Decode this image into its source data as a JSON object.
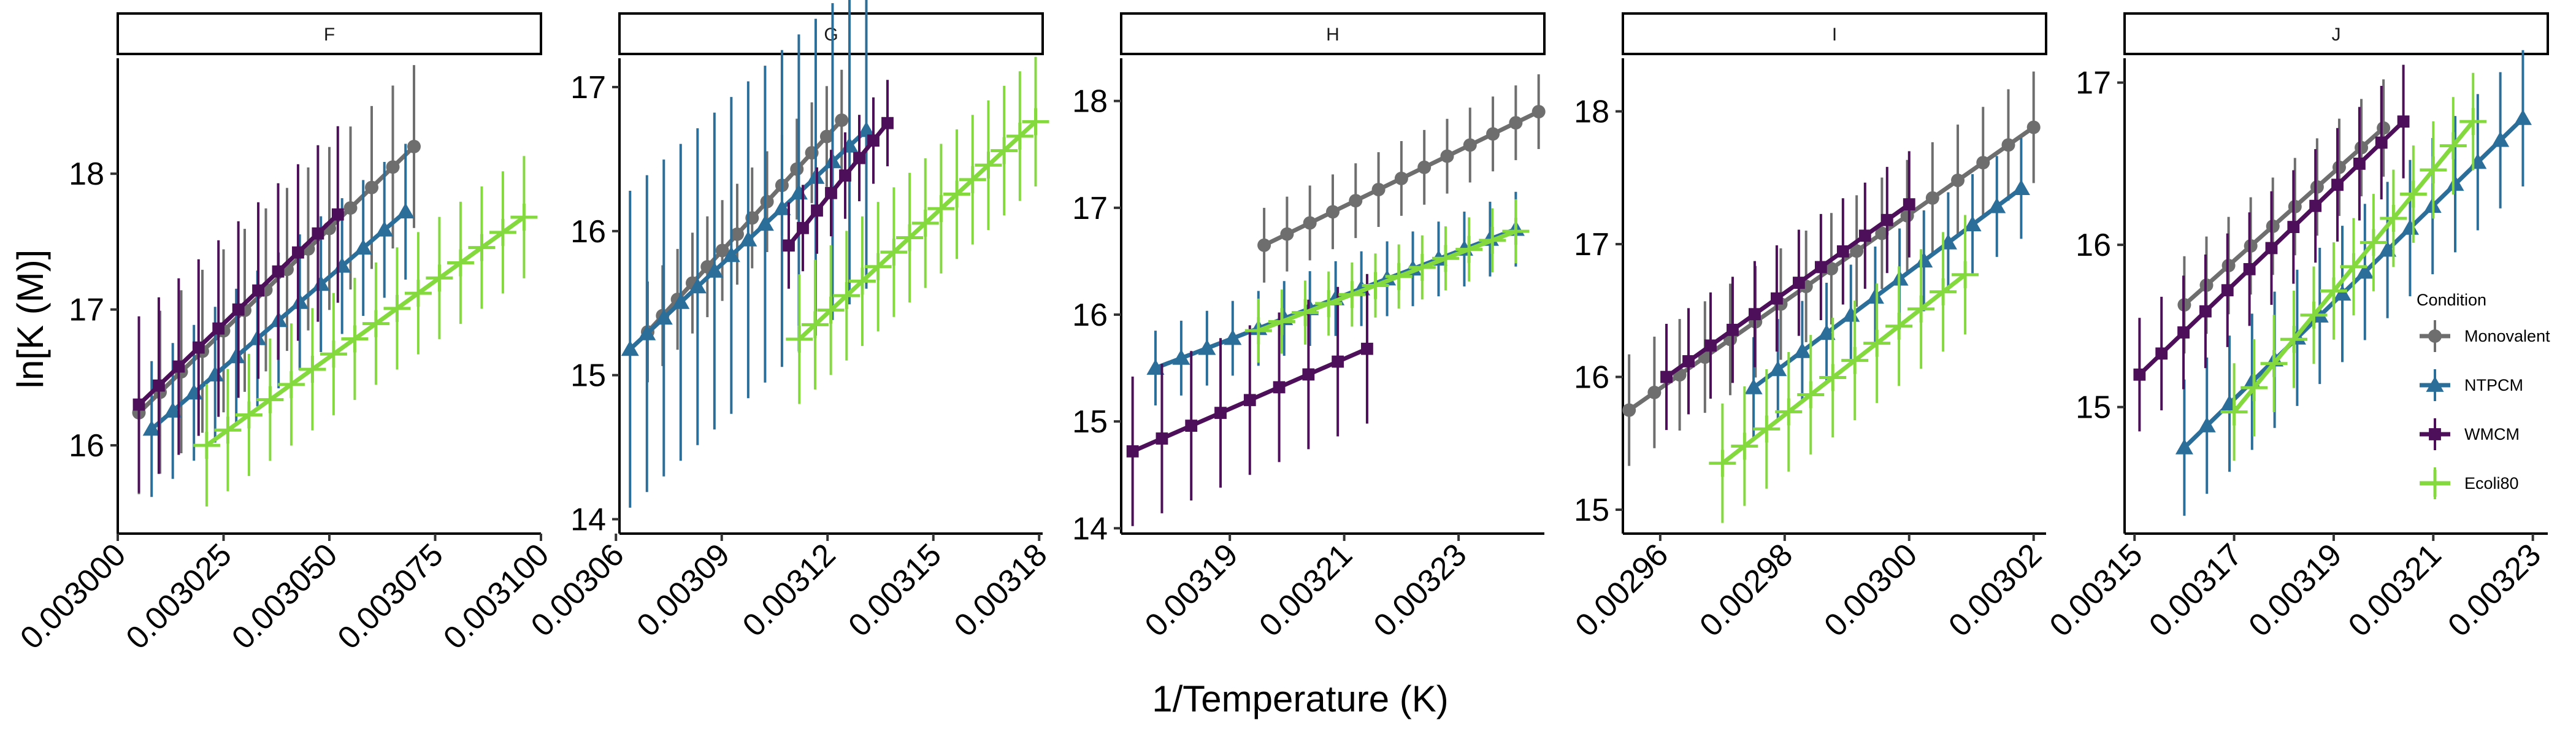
{
  "chart_data": {
    "type": "line",
    "xlabel": "1/Temperature (K)",
    "ylabel": "ln[K (M)]",
    "legend": {
      "title": "Condition",
      "placement": "right",
      "entries": [
        "Monovalent",
        "NTPCM",
        "WMCM",
        "Ecoli80"
      ]
    },
    "colors": {
      "Monovalent": "#6e6e6e",
      "NTPCM": "#2c6e9a",
      "WMCM": "#4d0f59",
      "Ecoli80": "#84d93f"
    },
    "markers": {
      "Monovalent": "circle",
      "NTPCM": "triangle",
      "WMCM": "square",
      "Ecoli80": "cross"
    },
    "panels": [
      {
        "title": "F",
        "xlim": [
          0.003,
          0.0031
        ],
        "ylim": [
          15.35,
          18.85
        ],
        "xticks": [
          0.003,
          0.003025,
          0.00305,
          0.003075,
          0.0031
        ],
        "xtick_labels": [
          "0.003000",
          "0.003025",
          "0.003050",
          "0.003075",
          "0.003100"
        ],
        "yticks": [
          16,
          17,
          18
        ],
        "ytick_labels": [
          "16",
          "17",
          "18"
        ],
        "series": [
          {
            "name": "Monovalent",
            "x0": 0.003005,
            "x1": 0.00307,
            "y0": 16.24,
            "y1": 18.2,
            "n": 14,
            "err": 0.6
          },
          {
            "name": "NTPCM",
            "x0": 0.003008,
            "x1": 0.003068,
            "y0": 16.12,
            "y1": 17.72,
            "n": 13,
            "err": 0.5
          },
          {
            "name": "WMCM",
            "x0": 0.003005,
            "x1": 0.003052,
            "y0": 16.3,
            "y1": 17.7,
            "n": 11,
            "err": 0.65
          },
          {
            "name": "Ecoli80",
            "x0": 0.003021,
            "x1": 0.003096,
            "y0": 16.0,
            "y1": 17.68,
            "n": 16,
            "err": 0.45
          }
        ]
      },
      {
        "title": "G",
        "xlim": [
          0.003061,
          0.003181
        ],
        "ylim": [
          13.9,
          17.2
        ],
        "xticks": [
          0.00306,
          0.00309,
          0.00312,
          0.00315,
          0.00318
        ],
        "xtick_labels": [
          "0.00306",
          "0.00309",
          "0.00312",
          "0.00315",
          "0.00318"
        ],
        "yticks": [
          14,
          15,
          16,
          17
        ],
        "ytick_labels": [
          "14",
          "15",
          "16",
          "17"
        ],
        "series": [
          {
            "name": "Monovalent",
            "x0": 0.003069,
            "x1": 0.003124,
            "y0": 15.3,
            "y1": 16.77,
            "n": 14,
            "err": 0.35
          },
          {
            "name": "NTPCM",
            "x0": 0.003064,
            "x1": 0.003131,
            "y0": 15.18,
            "y1": 16.7,
            "n": 15,
            "err": 1.1
          },
          {
            "name": "WMCM",
            "x0": 0.003109,
            "x1": 0.003137,
            "y0": 15.9,
            "y1": 16.75,
            "n": 8,
            "err": 0.3
          },
          {
            "name": "Ecoli80",
            "x0": 0.003112,
            "x1": 0.003179,
            "y0": 15.25,
            "y1": 16.76,
            "n": 16,
            "err": 0.45
          }
        ]
      },
      {
        "title": "H",
        "xlim": [
          0.003171,
          0.003245
        ],
        "ylim": [
          13.95,
          18.4
        ],
        "xticks": [
          0.00319,
          0.00321,
          0.00323
        ],
        "xtick_labels": [
          "0.00319",
          "0.00321",
          "0.00323"
        ],
        "yticks": [
          14,
          15,
          16,
          17,
          18
        ],
        "ytick_labels": [
          "14",
          "15",
          "16",
          "17",
          "18"
        ],
        "series": [
          {
            "name": "Monovalent",
            "x0": 0.003196,
            "x1": 0.003244,
            "y0": 16.65,
            "y1": 17.9,
            "n": 13,
            "err": 0.35
          },
          {
            "name": "NTPCM",
            "x0": 0.003177,
            "x1": 0.00324,
            "y0": 15.5,
            "y1": 16.8,
            "n": 15,
            "err": 0.35
          },
          {
            "name": "WMCM",
            "x0": 0.003173,
            "x1": 0.003214,
            "y0": 14.72,
            "y1": 15.68,
            "n": 9,
            "err": 0.7
          },
          {
            "name": "Ecoli80",
            "x0": 0.003195,
            "x1": 0.00324,
            "y0": 15.85,
            "y1": 16.78,
            "n": 12,
            "err": 0.3
          }
        ]
      },
      {
        "title": "I",
        "xlim": [
          0.002954,
          0.003022
        ],
        "ylim": [
          14.82,
          18.4
        ],
        "xticks": [
          0.00296,
          0.00298,
          0.003,
          0.00302
        ],
        "xtick_labels": [
          "0.00296",
          "0.00298",
          "0.00300",
          "0.00302"
        ],
        "yticks": [
          15,
          16,
          17,
          18
        ],
        "ytick_labels": [
          "15",
          "16",
          "17",
          "18"
        ],
        "series": [
          {
            "name": "Monovalent",
            "x0": 0.002955,
            "x1": 0.00302,
            "y0": 15.75,
            "y1": 17.88,
            "n": 17,
            "err": 0.42
          },
          {
            "name": "NTPCM",
            "x0": 0.002975,
            "x1": 0.003018,
            "y0": 15.92,
            "y1": 17.42,
            "n": 12,
            "err": 0.38
          },
          {
            "name": "WMCM",
            "x0": 0.002961,
            "x1": 0.003,
            "y0": 16.0,
            "y1": 17.3,
            "n": 12,
            "err": 0.4
          },
          {
            "name": "Ecoli80",
            "x0": 0.00297,
            "x1": 0.003009,
            "y0": 15.35,
            "y1": 16.77,
            "n": 12,
            "err": 0.45
          }
        ]
      },
      {
        "title": "J",
        "xlim": [
          0.003148,
          0.003233
        ],
        "ylim": [
          14.22,
          17.15
        ],
        "xticks": [
          0.00315,
          0.00317,
          0.00319,
          0.00321,
          0.00323
        ],
        "xtick_labels": [
          "0.00315",
          "0.00317",
          "0.00319",
          "0.00321",
          "0.00323"
        ],
        "yticks": [
          15,
          16,
          17
        ],
        "ytick_labels": [
          "15",
          "16",
          "17"
        ],
        "series": [
          {
            "name": "Monovalent",
            "x0": 0.00316,
            "x1": 0.0032,
            "y0": 15.63,
            "y1": 16.72,
            "n": 10,
            "err": 0.3
          },
          {
            "name": "NTPCM",
            "x0": 0.00316,
            "x1": 0.003228,
            "y0": 14.75,
            "y1": 16.78,
            "n": 16,
            "err": 0.42
          },
          {
            "name": "WMCM",
            "x0": 0.003151,
            "x1": 0.003204,
            "y0": 15.2,
            "y1": 16.76,
            "n": 13,
            "err": 0.35
          },
          {
            "name": "Ecoli80",
            "x0": 0.00317,
            "x1": 0.003218,
            "y0": 14.97,
            "y1": 16.76,
            "n": 13,
            "err": 0.3
          }
        ]
      }
    ]
  }
}
